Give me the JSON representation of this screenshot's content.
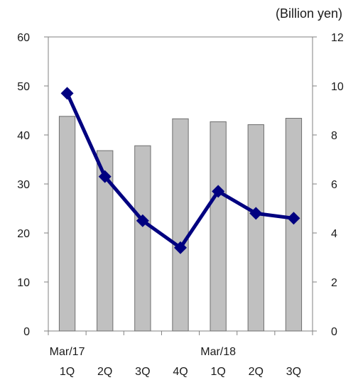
{
  "unit_label": "(Billion yen)",
  "chart_data": {
    "type": "bar",
    "categories": [
      "1Q",
      "2Q",
      "3Q",
      "4Q",
      "1Q",
      "2Q",
      "3Q"
    ],
    "group_labels": [
      {
        "label": "Mar/17",
        "category_index": 0
      },
      {
        "label": "Mar/18",
        "category_index": 4
      }
    ],
    "series": [
      {
        "type": "bar",
        "axis": "left",
        "values": [
          43.8,
          36.8,
          37.8,
          43.3,
          42.7,
          42.1,
          43.4
        ],
        "color": "#c0c0c0"
      },
      {
        "type": "line",
        "axis": "right",
        "values": [
          9.7,
          6.3,
          4.5,
          3.4,
          5.7,
          4.8,
          4.6
        ],
        "color": "#000080",
        "marker": "diamond"
      }
    ],
    "y_left": {
      "min": 0,
      "max": 60,
      "ticks": [
        0,
        10,
        20,
        30,
        40,
        50,
        60
      ]
    },
    "y_right": {
      "min": 0,
      "max": 12,
      "ticks": [
        0,
        2,
        4,
        6,
        8,
        10,
        12
      ]
    },
    "grid": false,
    "legend": "none"
  }
}
